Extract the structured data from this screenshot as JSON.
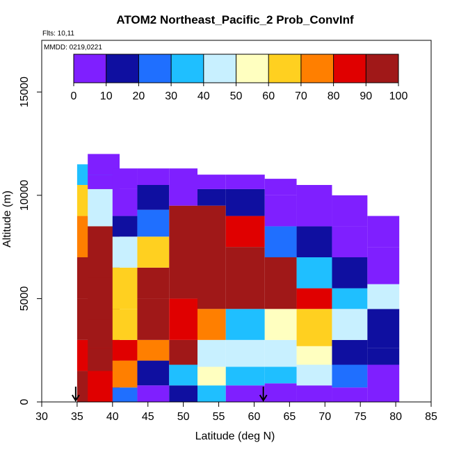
{
  "chart_data": {
    "type": "heatmap",
    "title": "ATOM2 Northeast_Pacific_2 Prob_ConvInf",
    "flights_label": "Flts: 10,11",
    "dates_label": "MMDD: 0219,0221",
    "xlabel": "Latitude (deg N)",
    "ylabel": "Altitude (m)",
    "xlim": [
      30,
      85
    ],
    "ylim": [
      0,
      17500
    ],
    "x_ticks": [
      "30",
      "35",
      "40",
      "45",
      "50",
      "55",
      "60",
      "65",
      "70",
      "75",
      "80",
      "85"
    ],
    "y_ticks": [
      "0",
      "5000",
      "10000",
      "15000"
    ],
    "colorbar": {
      "ticks": [
        "0",
        "10",
        "20",
        "30",
        "40",
        "50",
        "60",
        "70",
        "80",
        "90",
        "100"
      ],
      "range": [
        0,
        100
      ],
      "colors": [
        "#7f1fff",
        "#0f0fa0",
        "#1f6fff",
        "#1fbfff",
        "#c8f0ff",
        "#ffffc0",
        "#ffd020",
        "#ff7f00",
        "#e00000",
        "#a01818"
      ]
    },
    "arrow_markers_lat": [
      34.8,
      61.3
    ],
    "profiles": [
      {
        "lat": [
          35,
          41
        ],
        "alt": [
          0,
          11500
        ],
        "bands": [
          [
            0,
            1500,
            92
          ],
          [
            1500,
            3000,
            84
          ],
          [
            3000,
            5000,
            96
          ],
          [
            5000,
            7000,
            90
          ],
          [
            7000,
            9000,
            70
          ],
          [
            9000,
            10500,
            60
          ],
          [
            10500,
            11500,
            35
          ]
        ]
      },
      {
        "lat": [
          36.5,
          41
        ],
        "alt": [
          0,
          12000
        ],
        "bands": [
          [
            0,
            1500,
            86
          ],
          [
            1500,
            2600,
            95
          ],
          [
            2600,
            4000,
            96
          ],
          [
            4000,
            6000,
            98
          ],
          [
            6000,
            8500,
            92
          ],
          [
            8500,
            10300,
            40
          ],
          [
            10300,
            11000,
            8
          ],
          [
            11000,
            12000,
            4
          ]
        ]
      },
      {
        "lat": [
          40,
          43.5
        ],
        "alt": [
          0,
          11300
        ],
        "bands": [
          [
            0,
            700,
            25
          ],
          [
            700,
            2000,
            76
          ],
          [
            2000,
            3000,
            88
          ],
          [
            3000,
            4500,
            66
          ],
          [
            4500,
            6500,
            60
          ],
          [
            6500,
            8000,
            40
          ],
          [
            8000,
            9000,
            14
          ],
          [
            9000,
            10300,
            8
          ],
          [
            10300,
            11300,
            4
          ]
        ]
      },
      {
        "lat": [
          43.5,
          48
        ],
        "alt": [
          0,
          11300
        ],
        "bands": [
          [
            0,
            800,
            6
          ],
          [
            800,
            2000,
            12
          ],
          [
            2000,
            3000,
            76
          ],
          [
            3000,
            5000,
            92
          ],
          [
            5000,
            6500,
            95
          ],
          [
            6500,
            8000,
            66
          ],
          [
            8000,
            9300,
            22
          ],
          [
            9300,
            10500,
            10
          ],
          [
            10500,
            11300,
            4
          ]
        ]
      },
      {
        "lat": [
          48,
          52
        ],
        "alt": [
          0,
          11300
        ],
        "bands": [
          [
            0,
            800,
            12
          ],
          [
            800,
            1800,
            38
          ],
          [
            1800,
            3000,
            96
          ],
          [
            3000,
            5000,
            88
          ],
          [
            5000,
            9500,
            97
          ],
          [
            9500,
            10500,
            8
          ],
          [
            10500,
            11300,
            5
          ]
        ]
      },
      {
        "lat": [
          52,
          56
        ],
        "alt": [
          0,
          11000
        ],
        "bands": [
          [
            0,
            800,
            38
          ],
          [
            800,
            1700,
            52
          ],
          [
            1700,
            3000,
            40
          ],
          [
            3000,
            4500,
            76
          ],
          [
            4500,
            9500,
            98
          ],
          [
            9500,
            10300,
            10
          ],
          [
            10300,
            11000,
            5
          ]
        ]
      },
      {
        "lat": [
          56,
          61.5
        ],
        "alt": [
          0,
          11000
        ],
        "bands": [
          [
            0,
            800,
            4
          ],
          [
            800,
            1700,
            36
          ],
          [
            1700,
            3000,
            44
          ],
          [
            3000,
            4500,
            30
          ],
          [
            4500,
            7500,
            97
          ],
          [
            7500,
            9000,
            80
          ],
          [
            9000,
            10300,
            12
          ],
          [
            10300,
            11000,
            5
          ]
        ]
      },
      {
        "lat": [
          61.5,
          66
        ],
        "alt": [
          0,
          10800
        ],
        "bands": [
          [
            0,
            900,
            5
          ],
          [
            900,
            1700,
            38
          ],
          [
            1700,
            3000,
            48
          ],
          [
            3000,
            4500,
            55
          ],
          [
            4500,
            7000,
            90
          ],
          [
            7000,
            8500,
            20
          ],
          [
            8500,
            10000,
            8
          ],
          [
            10000,
            10800,
            5
          ]
        ]
      },
      {
        "lat": [
          66,
          71
        ],
        "alt": [
          0,
          10500
        ],
        "bands": [
          [
            0,
            800,
            8
          ],
          [
            800,
            1800,
            40
          ],
          [
            1800,
            2700,
            55
          ],
          [
            2700,
            4500,
            65
          ],
          [
            4500,
            5500,
            88
          ],
          [
            5500,
            7000,
            30
          ],
          [
            7000,
            8500,
            10
          ],
          [
            8500,
            10500,
            5
          ]
        ]
      },
      {
        "lat": [
          71,
          76
        ],
        "alt": [
          0,
          10000
        ],
        "bands": [
          [
            0,
            700,
            6
          ],
          [
            700,
            1800,
            22
          ],
          [
            1800,
            3000,
            12
          ],
          [
            3000,
            4500,
            40
          ],
          [
            4500,
            5500,
            35
          ],
          [
            5500,
            7000,
            12
          ],
          [
            7000,
            8500,
            6
          ],
          [
            8500,
            10000,
            4
          ]
        ]
      },
      {
        "lat": [
          76,
          80.5
        ],
        "alt": [
          0,
          9000
        ],
        "bands": [
          [
            0,
            1800,
            4
          ],
          [
            1800,
            2600,
            10
          ],
          [
            2600,
            4500,
            15
          ],
          [
            4500,
            5700,
            45
          ],
          [
            5700,
            7500,
            8
          ],
          [
            7500,
            9000,
            4
          ]
        ]
      }
    ]
  }
}
